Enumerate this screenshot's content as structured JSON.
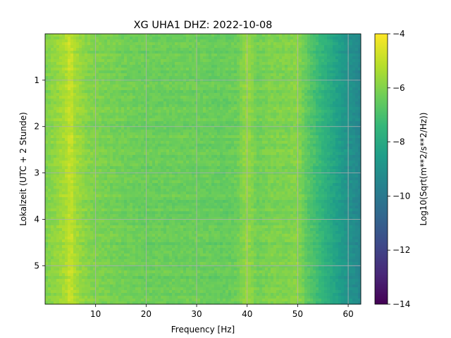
{
  "chart_data": {
    "type": "heatmap",
    "title": "XG UHA1  DHZ: 2022-10-08",
    "xlabel": "Frequency [Hz]",
    "ylabel": "Lokalzeit (UTC + 2 Stunde)",
    "colorbar_label": "Log10(Sqrt(m**2/s**2/Hz))",
    "xlim": [
      0,
      62.5
    ],
    "ylim": [
      5.83,
      0.0
    ],
    "x_ticks": [
      10,
      20,
      30,
      40,
      50,
      60
    ],
    "y_ticks": [
      1,
      2,
      3,
      4,
      5
    ],
    "colorbar_range": [
      -14,
      -4
    ],
    "colorbar_ticks": [
      -4,
      -6,
      -8,
      -10,
      -12,
      -14
    ],
    "colormap": "viridis",
    "grid": true,
    "spectral_profile": {
      "frequency_hz": [
        0,
        2,
        4,
        5,
        6,
        8,
        10,
        15,
        20,
        25,
        30,
        35,
        38,
        40,
        42,
        45,
        48,
        50,
        52,
        54,
        56,
        58,
        60,
        62.5
      ],
      "log10_amplitude": [
        -6.0,
        -5.7,
        -5.3,
        -4.8,
        -5.4,
        -5.8,
        -6.0,
        -6.2,
        -6.3,
        -6.3,
        -6.3,
        -6.4,
        -6.3,
        -5.6,
        -6.2,
        -6.0,
        -6.0,
        -5.8,
        -6.6,
        -7.2,
        -7.8,
        -8.4,
        -8.9,
        -9.4
      ]
    },
    "colors": {
      "viridis": [
        "#440154",
        "#482878",
        "#3e4989",
        "#31688e",
        "#26828e",
        "#1f9e89",
        "#35b779",
        "#6ece58",
        "#b5de2b",
        "#fde725"
      ],
      "grid": "#b0b0b0"
    }
  }
}
